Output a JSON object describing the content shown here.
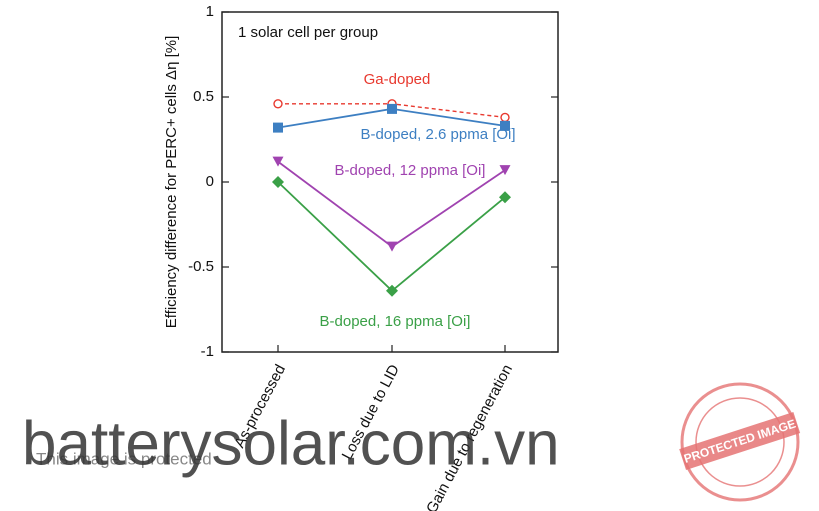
{
  "chart_data": {
    "type": "line",
    "y_label": "Efficiency difference for PERC+ cells Δη [%]",
    "annotation": "1 solar cell per group",
    "categories": [
      "As-processed",
      "Loss due to LID",
      "Gain due to regeneration"
    ],
    "ylim": [
      -1,
      1
    ],
    "yticks": [
      -1,
      -0.5,
      0,
      0.5,
      1
    ],
    "series": [
      {
        "name": "Ga-doped",
        "color": "#e8392f",
        "marker": "circle-open",
        "dashed": true,
        "values": [
          0.46,
          0.46,
          0.38
        ]
      },
      {
        "name": "B-doped, 2.6 ppma [Oi]",
        "color": "#3d7fc2",
        "marker": "square",
        "dashed": false,
        "values": [
          0.32,
          0.43,
          0.33
        ]
      },
      {
        "name": "B-doped, 12  ppma [Oi]",
        "color": "#a043b0",
        "marker": "triangle-down",
        "dashed": false,
        "values": [
          0.12,
          -0.38,
          0.07
        ]
      },
      {
        "name": "B-doped, 16 ppma [Oi]",
        "color": "#3aa047",
        "marker": "diamond",
        "dashed": false,
        "values": [
          0.0,
          -0.64,
          -0.09
        ]
      }
    ]
  },
  "watermark": {
    "site": "batterysolar.com.vn",
    "notice": "This image is protected",
    "stamp": "PROTECTED IMAGE"
  }
}
